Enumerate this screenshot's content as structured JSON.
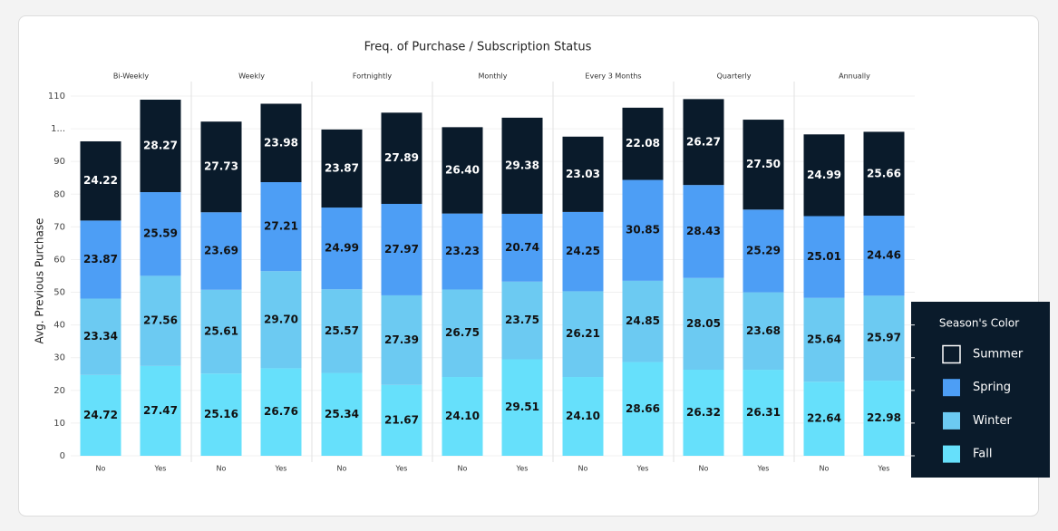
{
  "chart_data": {
    "type": "stacked_bar",
    "title": "Freq. of Purchase / Subscription Status",
    "y_label": "Avg. Previous Purchase",
    "facets": [
      "Bi-Weekly",
      "Weekly",
      "Fortnightly",
      "Monthly",
      "Every 3 Months",
      "Quarterly",
      "Annually"
    ],
    "categories": [
      "No",
      "Yes",
      "No",
      "Yes",
      "No",
      "Yes",
      "No",
      "Yes",
      "No",
      "Yes",
      "No",
      "Yes",
      "No",
      "Yes"
    ],
    "series": [
      {
        "name": "Fall",
        "color": "#66e0fb",
        "values": [
          24.72,
          27.47,
          25.16,
          26.76,
          25.34,
          21.67,
          24.1,
          29.51,
          24.1,
          28.66,
          26.32,
          26.31,
          22.64,
          22.98
        ],
        "value_labels": [
          "24.72",
          "27.47",
          "25.16",
          "26.76",
          "25.34",
          "21.67",
          "24.10",
          "29.51",
          "24.10",
          "28.66",
          "26.32",
          "26.31",
          "22.64",
          "22.98"
        ]
      },
      {
        "name": "Winter",
        "color": "#6ccaf2",
        "values": [
          23.34,
          27.56,
          25.61,
          29.7,
          25.57,
          27.39,
          26.75,
          23.75,
          26.21,
          24.85,
          28.05,
          23.68,
          25.64,
          25.97
        ],
        "value_labels": [
          "23.34",
          "27.56",
          "25.61",
          "29.70",
          "25.57",
          "27.39",
          "26.75",
          "23.75",
          "26.21",
          "24.85",
          "28.05",
          "23.68",
          "25.64",
          "25.97"
        ]
      },
      {
        "name": "Spring",
        "color": "#4d9ef5",
        "values": [
          23.87,
          25.59,
          23.69,
          27.21,
          24.99,
          27.97,
          23.23,
          20.74,
          24.25,
          30.85,
          28.43,
          25.29,
          25.01,
          24.46
        ],
        "value_labels": [
          "23.87",
          "25.59",
          "23.69",
          "27.21",
          "24.99",
          "27.97",
          "23.23",
          "20.74",
          "24.25",
          "30.85",
          "28.43",
          "25.29",
          "25.01",
          "24.46"
        ]
      },
      {
        "name": "Summer",
        "color": "#0a1b2b",
        "values": [
          24.22,
          28.27,
          27.73,
          23.98,
          23.87,
          27.89,
          26.4,
          29.38,
          23.03,
          22.08,
          26.27,
          27.5,
          24.99,
          25.66
        ],
        "value_labels": [
          "24.22",
          "28.27",
          "27.73",
          "23.98",
          "23.87",
          "27.89",
          "26.40",
          "29.38",
          "23.03",
          "22.08",
          "26.27",
          "27.50",
          "24.99",
          "25.66"
        ]
      }
    ],
    "ylim": [
      0,
      110
    ],
    "yticks": [
      0,
      10,
      20,
      30,
      40,
      50,
      60,
      70,
      80,
      90,
      {
        "value": 100,
        "label": "1..."
      },
      110
    ],
    "grid": true,
    "legend_title": "Season's Color",
    "legend": "right"
  }
}
